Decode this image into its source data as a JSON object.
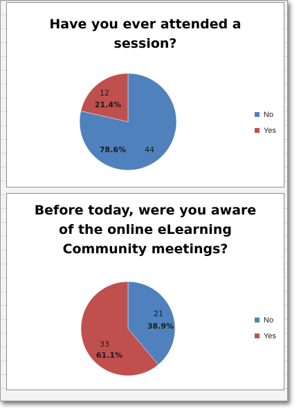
{
  "chart_data": [
    {
      "type": "pie",
      "title_lines": [
        "Have you ever attended a",
        "session?"
      ],
      "categories": [
        "No",
        "Yes"
      ],
      "values": [
        44,
        12
      ],
      "percent_labels": [
        "78.6%",
        "21.4%"
      ],
      "count_labels": [
        "44",
        "12"
      ],
      "colors": [
        "#4f81bd",
        "#c0504d"
      ],
      "legend_position": "right"
    },
    {
      "type": "pie",
      "title_lines": [
        "Before today, were you aware",
        "of the online eLearning",
        "Community meetings?"
      ],
      "categories": [
        "No",
        "Yes"
      ],
      "values": [
        21,
        33
      ],
      "percent_labels": [
        "38.9%",
        "61.1%"
      ],
      "count_labels": [
        "21",
        "33"
      ],
      "colors": [
        "#4f81bd",
        "#c0504d"
      ],
      "legend_position": "right"
    }
  ]
}
